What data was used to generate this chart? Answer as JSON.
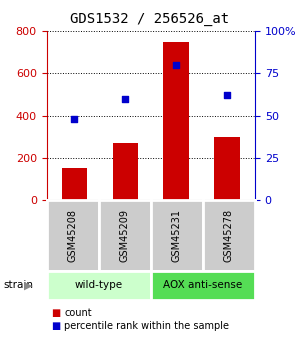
{
  "title": "GDS1532 / 256526_at",
  "samples": [
    "GSM45208",
    "GSM45209",
    "GSM45231",
    "GSM45278"
  ],
  "counts": [
    150,
    270,
    750,
    300
  ],
  "percentiles": [
    48,
    60,
    80,
    62
  ],
  "ylim_left": [
    0,
    800
  ],
  "ylim_right": [
    0,
    100
  ],
  "yticks_left": [
    0,
    200,
    400,
    600,
    800
  ],
  "yticks_right": [
    0,
    25,
    50,
    75,
    100
  ],
  "yticklabels_right": [
    "0",
    "25",
    "50",
    "75",
    "100%"
  ],
  "bar_color": "#cc0000",
  "dot_color": "#0000cc",
  "groups": [
    {
      "label": "wild-type",
      "color": "#ccffcc"
    },
    {
      "label": "AOX anti-sense",
      "color": "#55dd55"
    }
  ],
  "strain_label": "strain",
  "legend_count_label": "count",
  "legend_percentile_label": "percentile rank within the sample",
  "left_tick_color": "#cc0000",
  "right_tick_color": "#0000cc",
  "title_fontsize": 10,
  "tick_fontsize": 8,
  "bar_width": 0.5,
  "sample_box_color": "#cccccc",
  "box_border_color": "white"
}
